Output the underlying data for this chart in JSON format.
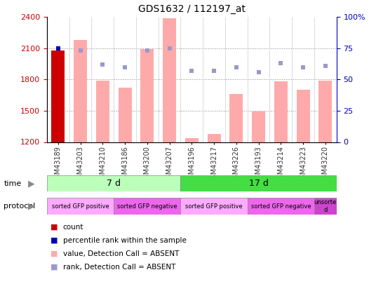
{
  "title": "GDS1632 / 112197_at",
  "samples": [
    "GSM43189",
    "GSM43203",
    "GSM43210",
    "GSM43186",
    "GSM43200",
    "GSM43207",
    "GSM43196",
    "GSM43217",
    "GSM43226",
    "GSM43193",
    "GSM43214",
    "GSM43223",
    "GSM43220"
  ],
  "values": [
    2080,
    2180,
    1790,
    1720,
    2090,
    2390,
    1240,
    1280,
    1660,
    1490,
    1780,
    1700,
    1790
  ],
  "ranks": [
    75,
    73,
    62,
    60,
    73,
    75,
    57,
    57,
    60,
    56,
    63,
    60,
    61
  ],
  "is_count": [
    true,
    false,
    false,
    false,
    false,
    false,
    false,
    false,
    false,
    false,
    false,
    false,
    false
  ],
  "ylim_left": [
    1200,
    2400
  ],
  "ylim_right": [
    0,
    100
  ],
  "yticks_left": [
    1200,
    1500,
    1800,
    2100,
    2400
  ],
  "yticks_right": [
    0,
    25,
    50,
    75,
    100
  ],
  "bar_color_absent": "#ffaaaa",
  "bar_color_count": "#cc0000",
  "rank_color_absent": "#9999cc",
  "rank_color_count": "#0000bb",
  "grid_color": "#888888",
  "time_groups": [
    {
      "label": "7 d",
      "start": 0,
      "end": 6,
      "color": "#bbffbb"
    },
    {
      "label": "17 d",
      "start": 6,
      "end": 13,
      "color": "#44dd44"
    }
  ],
  "protocol_groups": [
    {
      "label": "sorted GFP positive",
      "start": 0,
      "end": 3,
      "color": "#ffaaff"
    },
    {
      "label": "sorted GFP negative",
      "start": 3,
      "end": 6,
      "color": "#ee66ee"
    },
    {
      "label": "sorted GFP positive",
      "start": 6,
      "end": 9,
      "color": "#ffaaff"
    },
    {
      "label": "sorted GFP negative",
      "start": 9,
      "end": 12,
      "color": "#ee66ee"
    },
    {
      "label": "unsorte\nd",
      "start": 12,
      "end": 13,
      "color": "#cc44cc"
    }
  ],
  "legend_items": [
    {
      "label": "count",
      "color": "#cc0000",
      "marker": "square"
    },
    {
      "label": "percentile rank within the sample",
      "color": "#0000bb",
      "marker": "square"
    },
    {
      "label": "value, Detection Call = ABSENT",
      "color": "#ffaaaa",
      "marker": "square"
    },
    {
      "label": "rank, Detection Call = ABSENT",
      "color": "#9999cc",
      "marker": "square"
    }
  ],
  "xlabel_color": "#333333",
  "left_axis_color": "#cc0000",
  "right_axis_color": "#0000bb"
}
